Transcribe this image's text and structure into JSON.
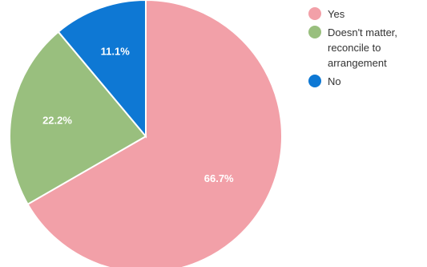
{
  "chart_data": {
    "type": "pie",
    "categories": [
      "Yes",
      "Doesn't matter,\nreconcile to\narrangement",
      "No"
    ],
    "values": [
      66.7,
      22.2,
      11.1
    ],
    "data_labels": [
      "66.7%",
      "22.2%",
      "11.1%"
    ],
    "colors": [
      "#f2a0a8",
      "#99bf7e",
      "#0e78d4"
    ],
    "start_angle_deg": 0,
    "direction": "clockwise",
    "legend_position": "right"
  }
}
